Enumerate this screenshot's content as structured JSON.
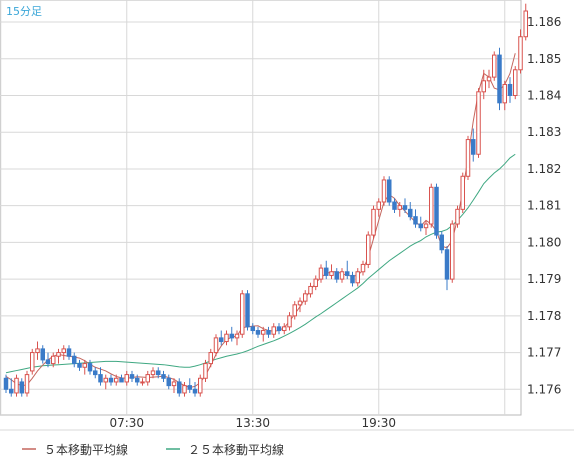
{
  "chart_data": {
    "type": "candlestick",
    "timeframe_label": "15分足",
    "x_tick_labels": [
      "07:30",
      "13:30",
      "19:30"
    ],
    "ylim": [
      1.1753,
      1.1866
    ],
    "y_ticks": [
      1.176,
      1.177,
      1.178,
      1.179,
      1.18,
      1.181,
      1.182,
      1.183,
      1.184,
      1.185,
      1.186
    ],
    "y_tick_labels": [
      "1.176",
      "1.177",
      "1.178",
      "1.179",
      "1.180",
      "1.181",
      "1.182",
      "1.183",
      "1.184",
      "1.185",
      "1.186"
    ],
    "grid": true,
    "legend_position": "bottom-left",
    "colors": {
      "up": "#d9534f",
      "down": "#3a7bc8",
      "ma5": "#c4665e",
      "ma25": "#3fa882",
      "grid": "#d8d8d8",
      "frame": "#b9b9b9"
    },
    "series": [
      {
        "name": "５本移動平均線",
        "key": "ma5"
      },
      {
        "name": "２５本移動平均線",
        "key": "ma25"
      }
    ],
    "ohlc": [
      [
        1.1763,
        1.1764,
        1.1759,
        1.176
      ],
      [
        1.176,
        1.1763,
        1.1758,
        1.1759
      ],
      [
        1.1759,
        1.1764,
        1.1758,
        1.1763
      ],
      [
        1.1762,
        1.1763,
        1.1758,
        1.1759
      ],
      [
        1.1759,
        1.1765,
        1.1758,
        1.1764
      ],
      [
        1.1765,
        1.1771,
        1.1764,
        1.177
      ],
      [
        1.177,
        1.1773,
        1.1768,
        1.1771
      ],
      [
        1.1771,
        1.1772,
        1.1767,
        1.1768
      ],
      [
        1.1768,
        1.177,
        1.1766,
        1.1767
      ],
      [
        1.1767,
        1.177,
        1.1766,
        1.1769
      ],
      [
        1.1769,
        1.1771,
        1.1767,
        1.177
      ],
      [
        1.177,
        1.1772,
        1.1768,
        1.1771
      ],
      [
        1.1771,
        1.1772,
        1.1768,
        1.1769
      ],
      [
        1.1769,
        1.177,
        1.1766,
        1.1767
      ],
      [
        1.1767,
        1.1768,
        1.1765,
        1.1766
      ],
      [
        1.1766,
        1.1768,
        1.1764,
        1.1767
      ],
      [
        1.1767,
        1.1768,
        1.1764,
        1.1765
      ],
      [
        1.1765,
        1.1766,
        1.1763,
        1.1764
      ],
      [
        1.1764,
        1.1766,
        1.1761,
        1.1762
      ],
      [
        1.1762,
        1.1764,
        1.176,
        1.1763
      ],
      [
        1.1763,
        1.1764,
        1.1761,
        1.1762
      ],
      [
        1.1762,
        1.1764,
        1.1761,
        1.1763
      ],
      [
        1.1763,
        1.1764,
        1.1762,
        1.1762
      ],
      [
        1.1762,
        1.1765,
        1.1761,
        1.1764
      ],
      [
        1.1764,
        1.1765,
        1.1762,
        1.1763
      ],
      [
        1.1763,
        1.1764,
        1.1761,
        1.1762
      ],
      [
        1.1762,
        1.1763,
        1.1761,
        1.1762
      ],
      [
        1.1762,
        1.1765,
        1.1761,
        1.1764
      ],
      [
        1.1764,
        1.1766,
        1.1763,
        1.1765
      ],
      [
        1.1765,
        1.1766,
        1.1763,
        1.1764
      ],
      [
        1.1764,
        1.1765,
        1.1762,
        1.1763
      ],
      [
        1.1763,
        1.1764,
        1.176,
        1.1761
      ],
      [
        1.1761,
        1.1763,
        1.1759,
        1.1762
      ],
      [
        1.1762,
        1.1763,
        1.1758,
        1.1759
      ],
      [
        1.1759,
        1.1762,
        1.1758,
        1.1761
      ],
      [
        1.1761,
        1.1763,
        1.1759,
        1.176
      ],
      [
        1.176,
        1.1762,
        1.1758,
        1.1759
      ],
      [
        1.1759,
        1.1764,
        1.1758,
        1.1763
      ],
      [
        1.1763,
        1.1768,
        1.1762,
        1.1767
      ],
      [
        1.1767,
        1.1771,
        1.1766,
        1.177
      ],
      [
        1.177,
        1.1775,
        1.1769,
        1.1774
      ],
      [
        1.1774,
        1.1776,
        1.1772,
        1.1773
      ],
      [
        1.1773,
        1.1776,
        1.1772,
        1.1775
      ],
      [
        1.1775,
        1.1777,
        1.1773,
        1.1774
      ],
      [
        1.1774,
        1.1776,
        1.1772,
        1.1775
      ],
      [
        1.1775,
        1.1787,
        1.1774,
        1.1786
      ],
      [
        1.1786,
        1.1787,
        1.1776,
        1.1777
      ],
      [
        1.1777,
        1.1778,
        1.1775,
        1.1776
      ],
      [
        1.1776,
        1.1777,
        1.1774,
        1.1775
      ],
      [
        1.1775,
        1.1777,
        1.1773,
        1.1776
      ],
      [
        1.1776,
        1.1777,
        1.1774,
        1.1775
      ],
      [
        1.1775,
        1.1778,
        1.1774,
        1.1777
      ],
      [
        1.1777,
        1.1778,
        1.1775,
        1.1776
      ],
      [
        1.1776,
        1.1778,
        1.1775,
        1.1777
      ],
      [
        1.1777,
        1.1781,
        1.1776,
        1.178
      ],
      [
        1.178,
        1.1784,
        1.1779,
        1.1783
      ],
      [
        1.1783,
        1.1785,
        1.1781,
        1.1784
      ],
      [
        1.1784,
        1.1787,
        1.1783,
        1.1786
      ],
      [
        1.1786,
        1.1789,
        1.1785,
        1.1788
      ],
      [
        1.1788,
        1.1791,
        1.1787,
        1.179
      ],
      [
        1.179,
        1.1794,
        1.1789,
        1.1793
      ],
      [
        1.1793,
        1.1795,
        1.179,
        1.1791
      ],
      [
        1.1791,
        1.1794,
        1.179,
        1.1792
      ],
      [
        1.1792,
        1.1793,
        1.1789,
        1.179
      ],
      [
        1.179,
        1.1793,
        1.1789,
        1.1792
      ],
      [
        1.1792,
        1.1795,
        1.179,
        1.1791
      ],
      [
        1.1791,
        1.1792,
        1.1788,
        1.1789
      ],
      [
        1.1789,
        1.1793,
        1.1788,
        1.1792
      ],
      [
        1.1792,
        1.1795,
        1.1791,
        1.1794
      ],
      [
        1.1794,
        1.1803,
        1.1793,
        1.1802
      ],
      [
        1.1802,
        1.181,
        1.1801,
        1.1809
      ],
      [
        1.1809,
        1.1812,
        1.1807,
        1.1811
      ],
      [
        1.1811,
        1.1818,
        1.181,
        1.1817
      ],
      [
        1.1817,
        1.1818,
        1.181,
        1.1811
      ],
      [
        1.1811,
        1.1812,
        1.1808,
        1.1809
      ],
      [
        1.1809,
        1.1811,
        1.1807,
        1.181
      ],
      [
        1.181,
        1.1812,
        1.1808,
        1.1809
      ],
      [
        1.1809,
        1.1811,
        1.1806,
        1.1807
      ],
      [
        1.1807,
        1.1809,
        1.1804,
        1.1805
      ],
      [
        1.1805,
        1.1807,
        1.1803,
        1.1804
      ],
      [
        1.1804,
        1.1806,
        1.1802,
        1.1805
      ],
      [
        1.1805,
        1.1816,
        1.1804,
        1.1815
      ],
      [
        1.1815,
        1.1816,
        1.1801,
        1.1802
      ],
      [
        1.1802,
        1.1803,
        1.1797,
        1.1798
      ],
      [
        1.1798,
        1.1799,
        1.1787,
        1.179
      ],
      [
        1.179,
        1.1806,
        1.1789,
        1.1805
      ],
      [
        1.1805,
        1.181,
        1.1804,
        1.1809
      ],
      [
        1.1809,
        1.1819,
        1.1808,
        1.1818
      ],
      [
        1.1818,
        1.1829,
        1.1817,
        1.1828
      ],
      [
        1.1828,
        1.1831,
        1.1822,
        1.1824
      ],
      [
        1.1824,
        1.1842,
        1.1823,
        1.1841
      ],
      [
        1.1841,
        1.1847,
        1.1839,
        1.1844
      ],
      [
        1.1844,
        1.1847,
        1.1842,
        1.1845
      ],
      [
        1.1845,
        1.1852,
        1.1844,
        1.1851
      ],
      [
        1.1851,
        1.1853,
        1.1836,
        1.1838
      ],
      [
        1.1838,
        1.1844,
        1.1836,
        1.1843
      ],
      [
        1.1843,
        1.1845,
        1.1838,
        1.184
      ],
      [
        1.184,
        1.1848,
        1.1839,
        1.1847
      ],
      [
        1.1847,
        1.1858,
        1.1846,
        1.1856
      ],
      [
        1.1856,
        1.1865,
        1.1855,
        1.1863
      ]
    ],
    "ma5": [
      1.17635,
      1.17626,
      1.17615,
      1.1761,
      1.17612,
      1.1763,
      1.1765,
      1.17666,
      1.1768,
      1.1769,
      1.17695,
      1.17692,
      1.1769,
      1.17688,
      1.17685,
      1.17678,
      1.17668,
      1.1766,
      1.17655,
      1.1765,
      1.17642,
      1.17635,
      1.17631,
      1.1763,
      1.17632,
      1.17634,
      1.17633,
      1.17632,
      1.17633,
      1.17634,
      1.17636,
      1.17632,
      1.17627,
      1.17618,
      1.1761,
      1.17605,
      1.17608,
      1.17618,
      1.17638,
      1.17665,
      1.17695,
      1.17718,
      1.17735,
      1.17742,
      1.17745,
      1.17768,
      1.1777,
      1.17772,
      1.17773,
      1.17765,
      1.1776,
      1.17758,
      1.1776,
      1.17768,
      1.17785,
      1.17805,
      1.17825,
      1.17848,
      1.1787,
      1.1789,
      1.17905,
      1.17915,
      1.1792,
      1.1792,
      1.17915,
      1.1791,
      1.17908,
      1.1791,
      1.17925,
      1.1796,
      1.1801,
      1.1806,
      1.1811,
      1.1813,
      1.1812,
      1.181,
      1.18085,
      1.1807,
      1.18055,
      1.18045,
      1.1806,
      1.1805,
      1.1803,
      1.1799,
      1.17985,
      1.18005,
      1.18065,
      1.1814,
      1.1823,
      1.1833,
      1.1841,
      1.1846,
      1.1845,
      1.1842,
      1.18415,
      1.1843,
      1.1846,
      1.18515
    ],
    "ma25": [
      1.17645,
      1.17648,
      1.17651,
      1.17654,
      1.17657,
      1.1766,
      1.17662,
      1.17664,
      1.17665,
      1.17666,
      1.17667,
      1.17668,
      1.17669,
      1.1767,
      1.17671,
      1.17672,
      1.17673,
      1.17674,
      1.17675,
      1.17676,
      1.17676,
      1.17676,
      1.17675,
      1.17674,
      1.17673,
      1.17672,
      1.17671,
      1.1767,
      1.17669,
      1.17668,
      1.17667,
      1.17665,
      1.17663,
      1.17661,
      1.1766,
      1.1766,
      1.17663,
      1.17667,
      1.17672,
      1.17677,
      1.17682,
      1.17686,
      1.1769,
      1.17693,
      1.17696,
      1.177,
      1.17705,
      1.17711,
      1.17717,
      1.17722,
      1.17727,
      1.17732,
      1.17738,
      1.17745,
      1.17752,
      1.1776,
      1.17768,
      1.17777,
      1.17787,
      1.17797,
      1.17806,
      1.17816,
      1.17826,
      1.17836,
      1.17846,
      1.17856,
      1.17866,
      1.17876,
      1.17888,
      1.17902,
      1.17914,
      1.17926,
      1.17938,
      1.1795,
      1.1796,
      1.1797,
      1.1798,
      1.1799,
      1.17998,
      1.18005,
      1.18015,
      1.18022,
      1.18028,
      1.1803,
      1.18035,
      1.18046,
      1.1806,
      1.18076,
      1.18094,
      1.18115,
      1.18137,
      1.1816,
      1.18175,
      1.18189,
      1.182,
      1.18214,
      1.1823,
      1.1824
    ]
  }
}
